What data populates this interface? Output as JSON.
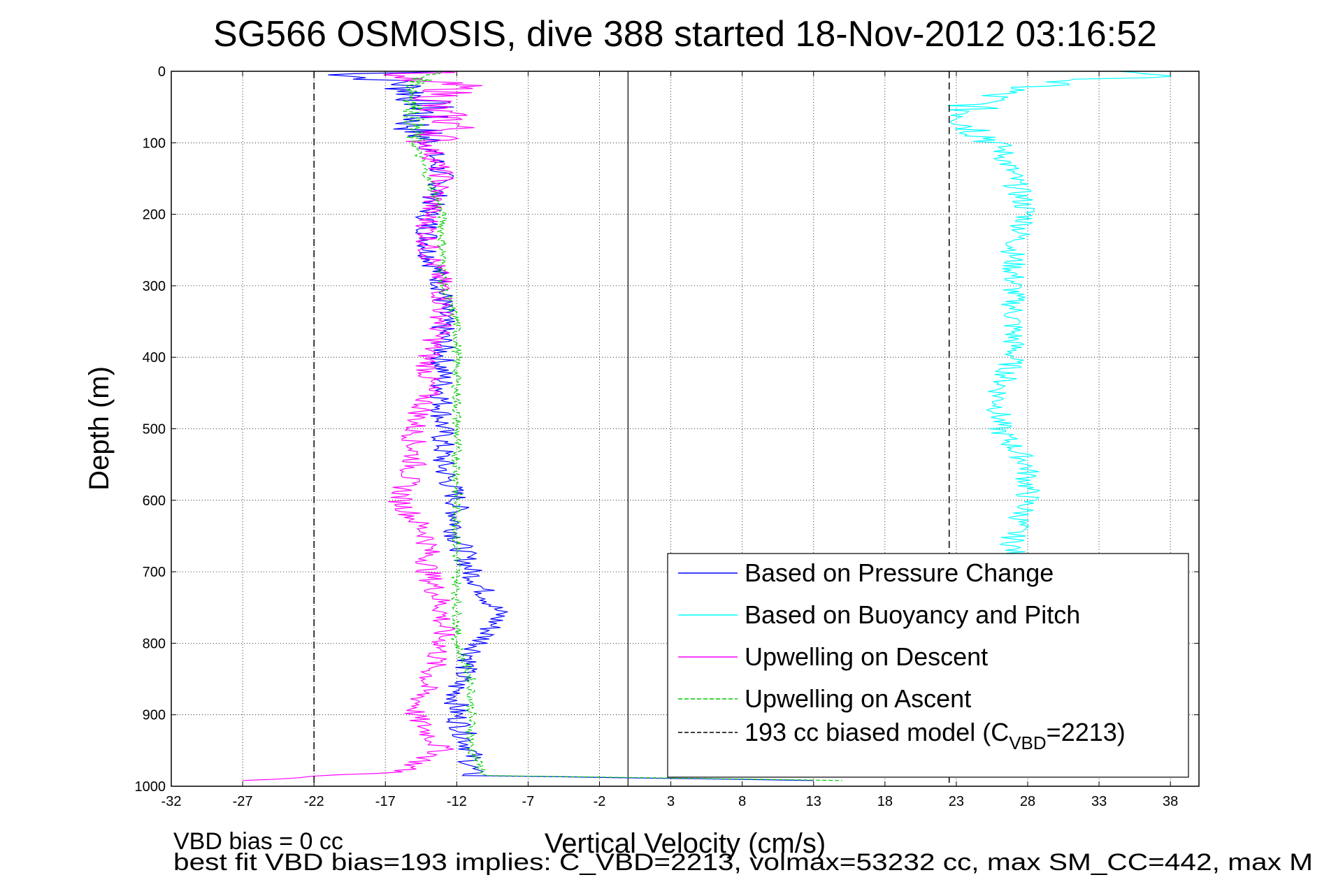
{
  "chart_data": {
    "type": "line",
    "title": "SG566 OSMOSIS, dive 388 started 18-Nov-2012 03:16:52",
    "xlabel": "Vertical Velocity (cm/s)",
    "ylabel": "Depth (m)",
    "xlim": [
      -32,
      40
    ],
    "ylim": [
      1000,
      0
    ],
    "xticks": [
      -32,
      -27,
      -22,
      -17,
      -12,
      -7,
      -2,
      3,
      8,
      13,
      18,
      23,
      28,
      33,
      38
    ],
    "yticks": [
      0,
      100,
      200,
      300,
      400,
      500,
      600,
      700,
      800,
      900,
      1000
    ],
    "grid": true,
    "legend_position": "bottom-right",
    "series": [
      {
        "name": "Based on Pressure Change",
        "color": "#0000ff",
        "style": "solid",
        "depth": [
          0,
          5,
          15,
          30,
          50,
          75,
          100,
          150,
          200,
          250,
          300,
          350,
          400,
          450,
          500,
          550,
          600,
          650,
          700,
          730,
          760,
          790,
          820,
          860,
          900,
          950,
          985,
          992
        ],
        "values": [
          -13,
          -20,
          -16,
          -15,
          -14,
          -15,
          -14,
          -13,
          -14,
          -14,
          -13,
          -13,
          -13,
          -13,
          -13,
          -13,
          -12,
          -12,
          -11,
          -10,
          -9,
          -10,
          -11,
          -12,
          -12,
          -11,
          -11,
          13
        ]
      },
      {
        "name": "Based on Buoyancy and Pitch",
        "color": "#00ffff",
        "style": "solid",
        "depth": [
          0,
          5,
          15,
          30,
          50,
          75,
          100,
          150,
          200,
          250,
          300,
          350,
          400,
          450,
          500,
          550,
          600,
          650,
          700
        ],
        "values": [
          35,
          38,
          30,
          26,
          24,
          24,
          26,
          27,
          28,
          27,
          27,
          27,
          27,
          26,
          26,
          28,
          28,
          27,
          27
        ]
      },
      {
        "name": "Upwelling on Descent",
        "color": "#ff00ff",
        "style": "solid",
        "depth": [
          0,
          5,
          20,
          50,
          75,
          100,
          150,
          200,
          250,
          300,
          350,
          400,
          450,
          500,
          550,
          600,
          650,
          700,
          750,
          800,
          850,
          900,
          950,
          980,
          992
        ],
        "values": [
          -12,
          -18,
          -12,
          -14,
          -12,
          -14,
          -13,
          -14,
          -14,
          -13,
          -13,
          -14,
          -14,
          -15,
          -15,
          -16,
          -14,
          -14,
          -13,
          -13,
          -14,
          -15,
          -13,
          -16,
          -27
        ]
      },
      {
        "name": "Upwelling on Ascent",
        "color": "#00cc00",
        "style": "dashed",
        "depth": [
          0,
          5,
          20,
          50,
          75,
          100,
          150,
          200,
          250,
          300,
          350,
          400,
          450,
          500,
          550,
          600,
          650,
          700,
          750,
          800,
          850,
          900,
          950,
          985,
          992
        ],
        "values": [
          -13,
          -14,
          -15,
          -15,
          -15,
          -15,
          -14,
          -13,
          -13,
          -13,
          -12,
          -12,
          -12,
          -12,
          -12,
          -12,
          -12,
          -12,
          -12,
          -12,
          -11,
          -11,
          -11,
          -10,
          15
        ]
      },
      {
        "name": "193 cc biased model (C",
        "color": "#000000",
        "style": "dashed",
        "left_value": -22,
        "right_value": 22.5
      }
    ],
    "vertical_line": 0
  },
  "legend": {
    "last_main": "193 cc biased model (C",
    "last_sub": "VBD",
    "last_tail": "=2213)"
  },
  "footer": {
    "line1": "VBD bias = 0 cc",
    "line2": "best fit VBD bias=193 implies: C_VBD=2213, volmax=53232 cc, max SM_CC=442, max M"
  }
}
